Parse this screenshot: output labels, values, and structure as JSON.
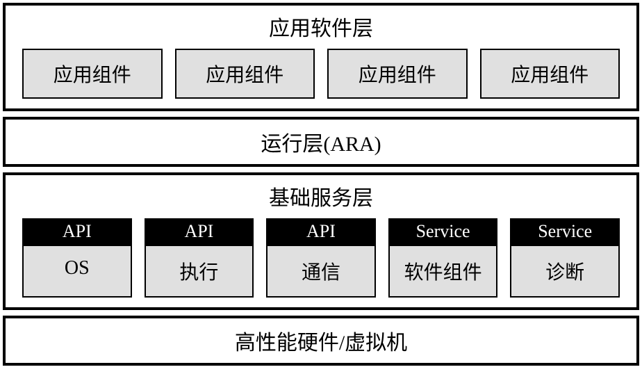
{
  "type": "layered-architecture",
  "background_color": "#ffffff",
  "border_color": "#000000",
  "border_width_outer": 4,
  "border_width_inner": 2.5,
  "box_fill_color": "#e0e0e0",
  "header_bg_color": "#000000",
  "header_text_color": "#ffffff",
  "title_fontsize": 30,
  "box_fontsize": 28,
  "header_fontsize": 26,
  "layers": {
    "application": {
      "title": "应用软件层",
      "components": [
        "应用组件",
        "应用组件",
        "应用组件",
        "应用组件"
      ]
    },
    "runtime": {
      "title": "运行层(ARA)"
    },
    "foundation": {
      "title": "基础服务层",
      "services": [
        {
          "header": "API",
          "label": "OS"
        },
        {
          "header": "API",
          "label": "执行"
        },
        {
          "header": "API",
          "label": "通信"
        },
        {
          "header": "Service",
          "label": "软件组件"
        },
        {
          "header": "Service",
          "label": "诊断"
        }
      ]
    },
    "hardware": {
      "title": "高性能硬件/虚拟机"
    }
  }
}
